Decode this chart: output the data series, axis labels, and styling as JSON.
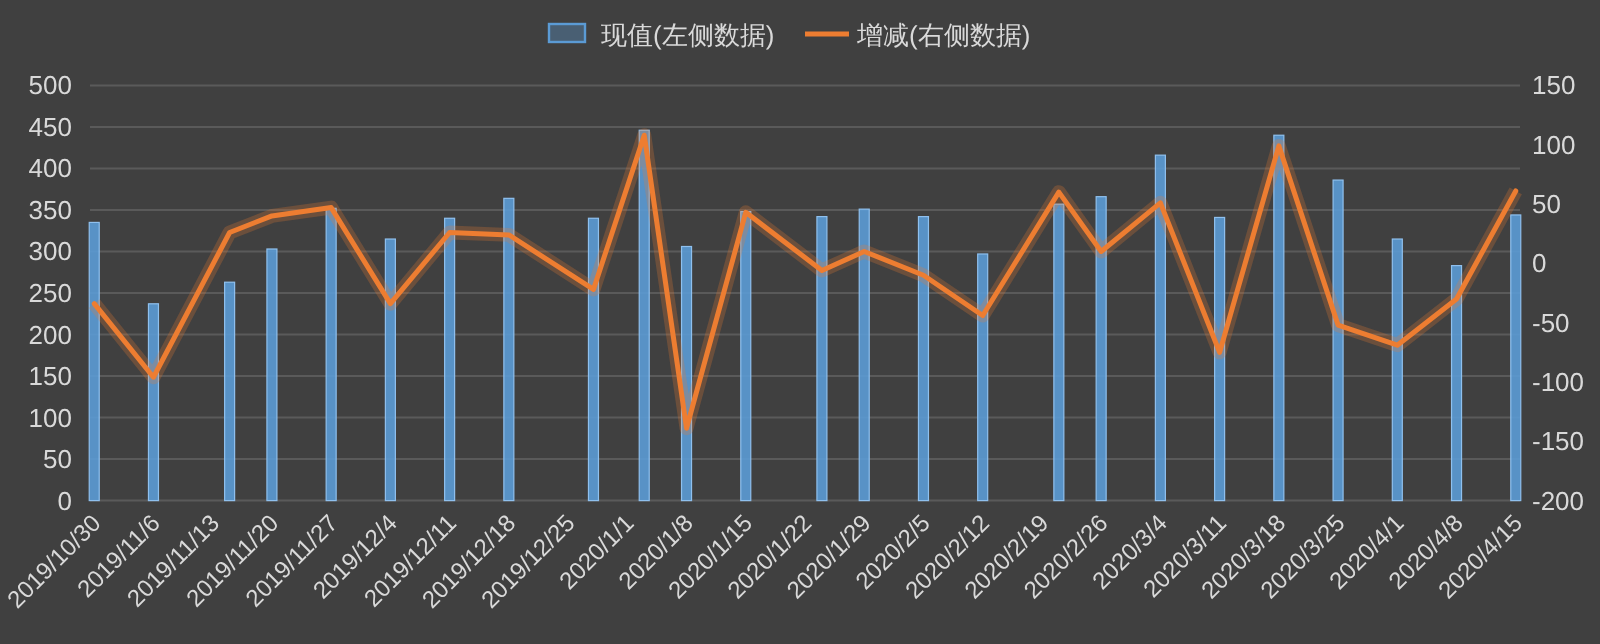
{
  "chart_data": {
    "type": "bar",
    "x": [
      "2019-10-30",
      "2019-11-06",
      "2019-11-15",
      "2019-11-20",
      "2019-11-27",
      "2019-12-04",
      "2019-12-11",
      "2019-12-18",
      "2019-12-28",
      "2020-01-03",
      "2020-01-08",
      "2020-01-15",
      "2020-01-24",
      "2020-01-29",
      "2020-02-05",
      "2020-02-12",
      "2020-02-21",
      "2020-02-26",
      "2020-03-04",
      "2020-03-11",
      "2020-03-18",
      "2020-03-25",
      "2020-04-01",
      "2020-04-08",
      "2020-04-15"
    ],
    "series": [
      {
        "name": "现值(左侧数据)",
        "color": "#5b9bd5",
        "values": [
          335,
          237,
          263,
          303,
          352,
          315,
          340,
          364,
          340,
          446,
          306,
          348,
          342,
          351,
          342,
          297,
          357,
          366,
          416,
          341,
          440,
          386,
          315,
          283,
          344
        ]
      },
      {
        "name": "增减(右侧数据)",
        "type": "line",
        "axis": "y2",
        "color": "#ed7d31",
        "values": [
          -34,
          -96,
          26,
          40,
          47,
          -34,
          26,
          24,
          -22,
          108,
          -139,
          43,
          -6,
          10,
          -10,
          -44,
          60,
          10,
          51,
          -75,
          99,
          -52,
          -69,
          -30,
          61
        ]
      }
    ],
    "xlim": [
      "2019-10-29T12:00",
      "2020-04-15T12:00"
    ],
    "xticks": [
      {
        "value": "2019-10-30",
        "label": "2019/10/30"
      },
      {
        "value": "2019-11-06",
        "label": "2019/11/6"
      },
      {
        "value": "2019-11-13",
        "label": "2019/11/13"
      },
      {
        "value": "2019-11-20",
        "label": "2019/11/20"
      },
      {
        "value": "2019-11-27",
        "label": "2019/11/27"
      },
      {
        "value": "2019-12-04",
        "label": "2019/12/4"
      },
      {
        "value": "2019-12-11",
        "label": "2019/12/11"
      },
      {
        "value": "2019-12-18",
        "label": "2019/12/18"
      },
      {
        "value": "2019-12-25",
        "label": "2019/12/25"
      },
      {
        "value": "2020-01-01",
        "label": "2020/1/1"
      },
      {
        "value": "2020-01-08",
        "label": "2020/1/8"
      },
      {
        "value": "2020-01-15",
        "label": "2020/1/15"
      },
      {
        "value": "2020-01-22",
        "label": "2020/1/22"
      },
      {
        "value": "2020-01-29",
        "label": "2020/1/29"
      },
      {
        "value": "2020-02-05",
        "label": "2020/2/5"
      },
      {
        "value": "2020-02-12",
        "label": "2020/2/12"
      },
      {
        "value": "2020-02-19",
        "label": "2020/2/19"
      },
      {
        "value": "2020-02-26",
        "label": "2020/2/26"
      },
      {
        "value": "2020-03-04",
        "label": "2020/3/4"
      },
      {
        "value": "2020-03-11",
        "label": "2020/3/11"
      },
      {
        "value": "2020-03-18",
        "label": "2020/3/18"
      },
      {
        "value": "2020-03-25",
        "label": "2020/3/25"
      },
      {
        "value": "2020-04-01",
        "label": "2020/4/1"
      },
      {
        "value": "2020-04-08",
        "label": "2020/4/8"
      },
      {
        "value": "2020-04-15",
        "label": "2020/4/15"
      }
    ],
    "ylim": [
      0,
      500
    ],
    "yticks": [
      0,
      50,
      100,
      150,
      200,
      250,
      300,
      350,
      400,
      450,
      500
    ],
    "y2lim": [
      -200,
      150
    ],
    "y2ticks": [
      -200,
      -150,
      -100,
      -50,
      0,
      50,
      100,
      150
    ],
    "grid": "y",
    "legend": "top",
    "marker": "none",
    "line_style": "solid"
  }
}
